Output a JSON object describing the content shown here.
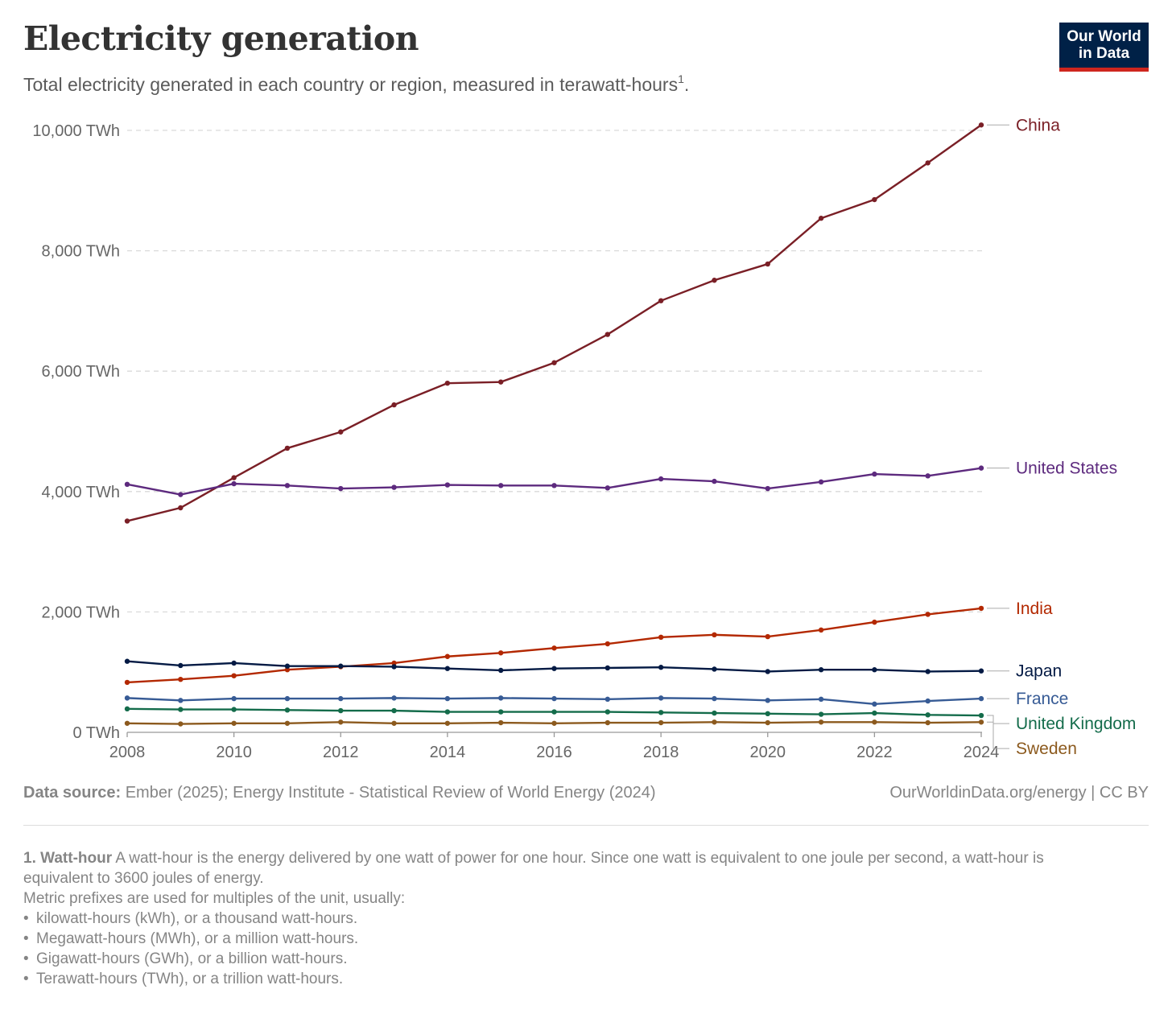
{
  "header": {
    "title": "Electricity generation",
    "subtitle": "Total electricity generated in each country or region, measured in  terawatt-hours",
    "subtitle_note": "1",
    "subtitle_end": "."
  },
  "logo": {
    "line1": "Our World",
    "line2": "in Data"
  },
  "chart_data": {
    "type": "line",
    "x": [
      2008,
      2009,
      2010,
      2011,
      2012,
      2013,
      2014,
      2015,
      2016,
      2017,
      2018,
      2019,
      2020,
      2021,
      2022,
      2023,
      2024
    ],
    "xticks": [
      2008,
      2010,
      2012,
      2014,
      2016,
      2018,
      2020,
      2022,
      2024
    ],
    "yticks": [
      0,
      2000,
      4000,
      6000,
      8000,
      10000
    ],
    "ytick_labels": [
      "0 TWh",
      "2,000 TWh",
      "4,000 TWh",
      "6,000 TWh",
      "8,000 TWh",
      "10,000 TWh"
    ],
    "xlim": [
      2008,
      2024
    ],
    "ylim": [
      0,
      10000
    ],
    "grid": "horizontal dashed",
    "legend": "line end labels at right",
    "series": [
      {
        "name": "China",
        "color": "#7a1f26",
        "values": [
          3510,
          3730,
          4230,
          4720,
          4990,
          5440,
          5800,
          5820,
          6140,
          6610,
          7170,
          7510,
          7780,
          8540,
          8850,
          9460,
          10090
        ]
      },
      {
        "name": "United States",
        "color": "#5d2a7e",
        "values": [
          4120,
          3950,
          4130,
          4100,
          4050,
          4070,
          4110,
          4100,
          4100,
          4060,
          4210,
          4170,
          4050,
          4160,
          4290,
          4260,
          4390
        ]
      },
      {
        "name": "India",
        "color": "#b32800",
        "values": [
          830,
          880,
          940,
          1040,
          1090,
          1150,
          1260,
          1320,
          1400,
          1470,
          1580,
          1620,
          1590,
          1700,
          1830,
          1960,
          2060
        ]
      },
      {
        "name": "Japan",
        "color": "#041a44",
        "values": [
          1180,
          1110,
          1150,
          1100,
          1100,
          1090,
          1060,
          1030,
          1060,
          1070,
          1080,
          1050,
          1010,
          1040,
          1040,
          1010,
          1020
        ]
      },
      {
        "name": "France",
        "color": "#375b95",
        "values": [
          570,
          530,
          560,
          560,
          560,
          570,
          560,
          570,
          560,
          550,
          570,
          560,
          530,
          550,
          470,
          520,
          560
        ]
      },
      {
        "name": "United Kingdom",
        "color": "#146c4b",
        "values": [
          390,
          380,
          380,
          370,
          360,
          360,
          340,
          340,
          340,
          340,
          330,
          320,
          310,
          300,
          320,
          290,
          280
        ]
      },
      {
        "name": "Sweden",
        "color": "#8c5a1e",
        "values": [
          150,
          140,
          150,
          150,
          170,
          150,
          150,
          160,
          150,
          160,
          160,
          170,
          160,
          170,
          170,
          160,
          170
        ]
      }
    ]
  },
  "footer": {
    "source_label": "Data source:",
    "source_text": " Ember (2025); Energy Institute - Statistical Review of World Energy (2024)",
    "url_text": "OurWorldinData.org/energy  | CC BY"
  },
  "notes": {
    "head": "1. Watt-hour",
    "text": " A watt-hour is the energy delivered by one watt of power for one hour. Since one watt is equivalent to one joule per second, a watt-hour is equivalent to 3600 joules of energy.",
    "line2": "Metric prefixes are used for multiples of the unit, usually:",
    "bullets": [
      "kilowatt-hours (kWh), or a thousand watt-hours.",
      "Megawatt-hours (MWh), or a million watt-hours.",
      "Gigawatt-hours (GWh), or a billion watt-hours.",
      "Terawatt-hours (TWh), or a trillion watt-hours."
    ]
  }
}
